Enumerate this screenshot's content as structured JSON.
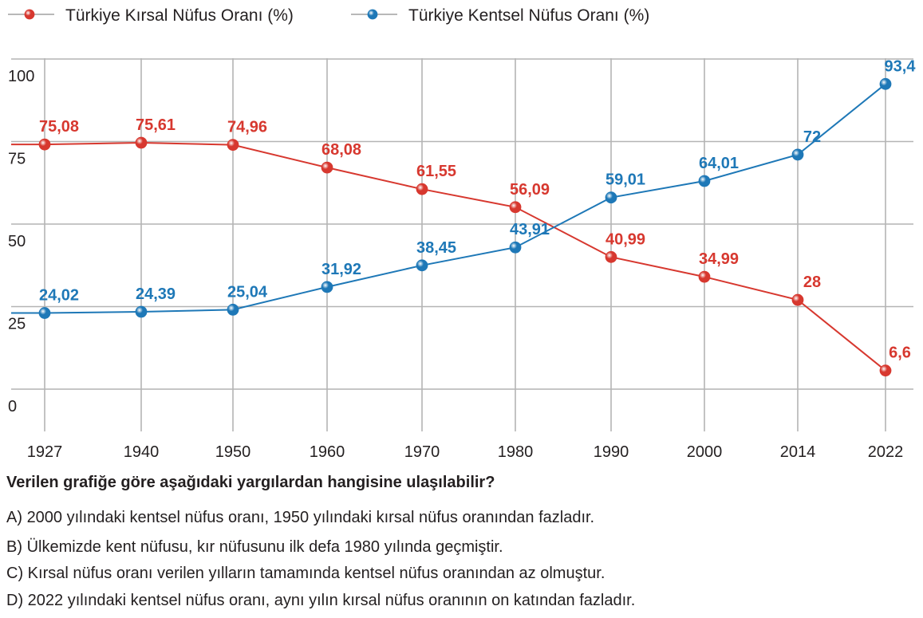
{
  "chart_data": {
    "type": "line",
    "categories": [
      "1927",
      "1940",
      "1950",
      "1960",
      "1970",
      "1980",
      "1990",
      "2000",
      "2014",
      "2022"
    ],
    "series": [
      {
        "name": "Türkiye Kırsal Nüfus Oranı (%)",
        "color": "#d7382f",
        "values": [
          75.08,
          75.61,
          74.96,
          68.08,
          61.55,
          56.09,
          40.99,
          34.99,
          28,
          6.6
        ],
        "labels": [
          "75,08",
          "75,61",
          "74,96",
          "68,08",
          "61,55",
          "56,09",
          "40,99",
          "34,99",
          "28",
          "6,6"
        ]
      },
      {
        "name": "Türkiye Kentsel Nüfus Oranı (%)",
        "color": "#1e78b7",
        "values": [
          24.02,
          24.39,
          25.04,
          31.92,
          38.45,
          43.91,
          59.01,
          64.01,
          72,
          93.4
        ],
        "labels": [
          "24,02",
          "24,39",
          "25,04",
          "31,92",
          "38,45",
          "43,91",
          "59,01",
          "64,01",
          "72",
          "93,4"
        ]
      }
    ],
    "yticks": [
      "0",
      "25",
      "50",
      "75",
      "100"
    ],
    "ylim": [
      0,
      100
    ],
    "xlabel": "",
    "ylabel": "",
    "grid": true,
    "legend": "top-left"
  },
  "question": {
    "text": "Verilen grafiğe göre aşağıdaki yargılardan hangisine ulaşılabilir?",
    "options": [
      {
        "letter": "A)",
        "text": "2000 yılındaki kentsel nüfus oranı, 1950 yılındaki kırsal nüfus oranından fazladır."
      },
      {
        "letter": "B)",
        "text": "Ülkemizde kent nüfusu, kır nüfusunu ilk defa 1980 yılında geçmiştir."
      },
      {
        "letter": "C)",
        "text": "Kırsal nüfus oranı verilen yılların tamamında kentsel nüfus oranından az olmuştur."
      },
      {
        "letter": "D)",
        "text": "2022 yılındaki kentsel nüfus oranı, aynı yılın kırsal nüfus oranının on katından fazladır."
      }
    ]
  }
}
